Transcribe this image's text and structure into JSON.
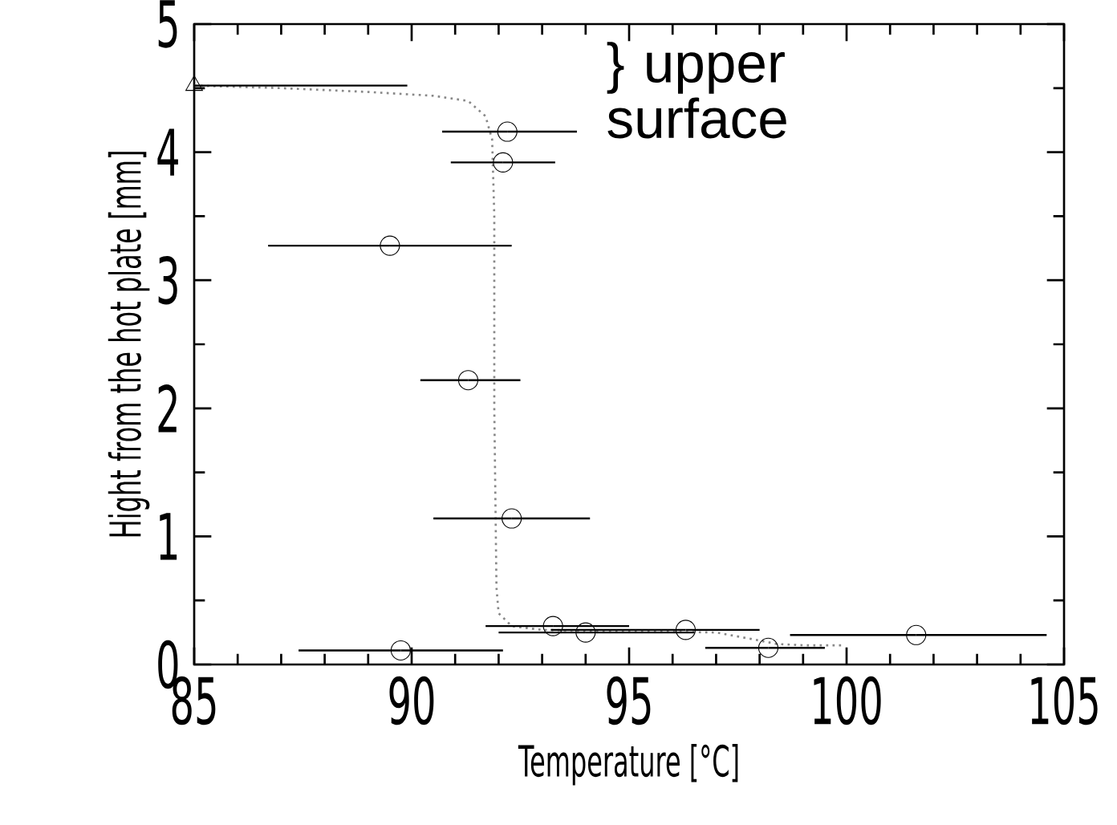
{
  "chart_data": {
    "type": "scatter",
    "xlabel": "Temperature [°C]",
    "ylabel": "Hight from the hot plate [mm]",
    "annotations": [
      "} upper surface"
    ],
    "xlim": [
      85,
      105
    ],
    "xticks": [
      85,
      90,
      95,
      100,
      105
    ],
    "ylim": [
      0,
      5
    ],
    "yticks": [
      0,
      1,
      2,
      3,
      4,
      5
    ],
    "grid": false,
    "series": [
      {
        "type": "line",
        "color": "#888888",
        "marker": "none",
        "line_style": "dotted",
        "x": [
          85,
          87,
          89,
          90.5,
          91.3,
          91.7,
          91.85,
          91.9,
          91.9,
          91.95,
          92,
          92.3,
          93,
          95,
          97,
          97.8,
          98.4,
          99,
          99.9
        ],
        "values": [
          4.52,
          4.5,
          4.47,
          4.44,
          4.4,
          4.28,
          4.1,
          3.5,
          2,
          0.6,
          0.4,
          0.3,
          0.27,
          0.26,
          0.25,
          0.2,
          0.16,
          0.15,
          0.15
        ]
      },
      {
        "color": "#000000",
        "marker": "triangle",
        "x": [
          85
        ],
        "values": [
          4.52
        ],
        "xerrors": [
          [
            85,
            89.9
          ]
        ]
      },
      {
        "color": "#000000",
        "marker": "circle",
        "x": [
          92.2,
          92.1,
          89.5,
          91.3,
          92.3,
          93.25,
          94.0,
          96.3,
          89.75,
          98.2,
          101.6
        ],
        "values": [
          4.16,
          3.92,
          3.27,
          2.22,
          1.14,
          0.3,
          0.25,
          0.27,
          0.11,
          0.13,
          0.23
        ],
        "xerrors": [
          [
            90.7,
            93.8
          ],
          [
            90.9,
            93.3
          ],
          [
            86.7,
            92.3
          ],
          [
            90.2,
            92.5
          ],
          [
            90.5,
            94.1
          ],
          [
            91.7,
            95.0
          ],
          [
            92.0,
            96.5
          ],
          [
            93.2,
            98.0
          ],
          [
            87.4,
            92.1
          ],
          [
            96.75,
            99.5
          ],
          [
            98.7,
            104.6
          ]
        ]
      }
    ]
  }
}
